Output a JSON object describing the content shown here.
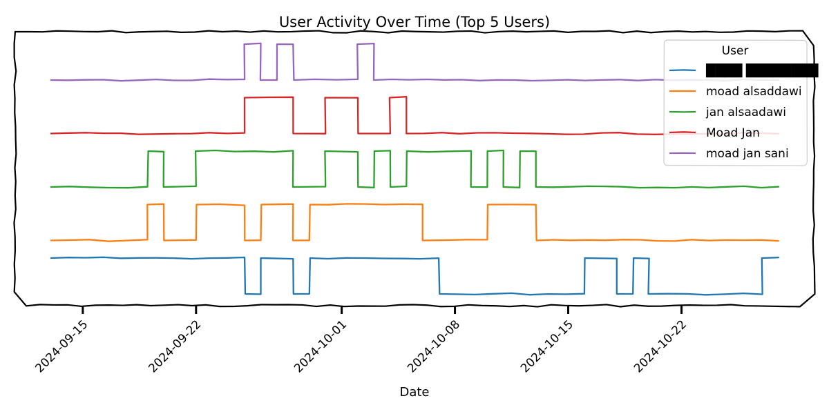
{
  "chart_data": {
    "type": "line",
    "style": "step",
    "title": "User Activity Over Time (Top 5 Users)",
    "xlabel": "Date",
    "ylabel": "",
    "x_tick_labels": [
      "2024-09-15",
      "2024-09-22",
      "2024-10-01",
      "2024-10-08",
      "2024-10-15",
      "2024-10-22"
    ],
    "x_tick_dates": [
      "2024-09-15",
      "2024-09-22",
      "2024-10-01",
      "2024-10-08",
      "2024-10-15",
      "2024-10-22"
    ],
    "xlim": [
      "2024-09-13",
      "2024-10-28"
    ],
    "y_ticks_shown": false,
    "grid": false,
    "legend": {
      "title": "User",
      "position": "top-right"
    },
    "series": [
      {
        "name": "████ ████████",
        "color": "#1f77b4",
        "baseline": 0,
        "active": 1,
        "note_segments": [
          [
            "2024-09-13",
            1
          ],
          [
            "2024-09-25",
            0
          ],
          [
            "2024-09-26",
            1
          ],
          [
            "2024-09-28",
            0
          ],
          [
            "2024-09-29",
            1
          ],
          [
            "2024-10-07",
            0
          ],
          [
            "2024-10-16",
            1
          ],
          [
            "2024-10-18",
            0
          ],
          [
            "2024-10-19",
            1
          ],
          [
            "2024-10-20",
            0
          ],
          [
            "2024-10-27",
            1
          ],
          [
            "2024-10-28",
            1
          ]
        ]
      },
      {
        "name": "moad alsaddawi",
        "color": "#ff7f0e",
        "baseline": 1,
        "active": 1,
        "note_segments": [
          [
            "2024-09-13",
            0
          ],
          [
            "2024-09-19",
            1
          ],
          [
            "2024-09-20",
            0
          ],
          [
            "2024-09-22",
            1
          ],
          [
            "2024-09-25",
            0
          ],
          [
            "2024-09-26",
            1
          ],
          [
            "2024-09-28",
            0
          ],
          [
            "2024-09-29",
            1
          ],
          [
            "2024-10-06",
            0
          ],
          [
            "2024-10-10",
            1
          ],
          [
            "2024-10-13",
            0
          ],
          [
            "2024-10-28",
            0
          ]
        ]
      },
      {
        "name": "jan alsaadawi",
        "color": "#2ca02c",
        "baseline": 2,
        "active": 1,
        "note_segments": [
          [
            "2024-09-13",
            0
          ],
          [
            "2024-09-19",
            1
          ],
          [
            "2024-09-20",
            0
          ],
          [
            "2024-09-22",
            1
          ],
          [
            "2024-09-28",
            0
          ],
          [
            "2024-09-30",
            1
          ],
          [
            "2024-10-02",
            0
          ],
          [
            "2024-10-03",
            1
          ],
          [
            "2024-10-04",
            0
          ],
          [
            "2024-10-05",
            1
          ],
          [
            "2024-10-09",
            0
          ],
          [
            "2024-10-10",
            1
          ],
          [
            "2024-10-11",
            0
          ],
          [
            "2024-10-12",
            1
          ],
          [
            "2024-10-13",
            0
          ],
          [
            "2024-10-28",
            0
          ]
        ]
      },
      {
        "name": "Moad Jan",
        "color": "#d62728",
        "baseline": 3,
        "active": 1,
        "note_segments": [
          [
            "2024-09-13",
            0
          ],
          [
            "2024-09-25",
            1
          ],
          [
            "2024-09-28",
            0
          ],
          [
            "2024-09-30",
            1
          ],
          [
            "2024-10-02",
            0
          ],
          [
            "2024-10-04",
            1
          ],
          [
            "2024-10-05",
            0
          ],
          [
            "2024-10-28",
            0
          ]
        ]
      },
      {
        "name": "moad jan sani",
        "color": "#9467bd",
        "baseline": 4,
        "active": 1,
        "note_segments": [
          [
            "2024-09-13",
            0
          ],
          [
            "2024-09-25",
            1
          ],
          [
            "2024-09-26",
            0
          ],
          [
            "2024-09-27",
            1
          ],
          [
            "2024-09-28",
            0
          ],
          [
            "2024-10-02",
            1
          ],
          [
            "2024-10-03",
            0
          ],
          [
            "2024-10-28",
            0
          ]
        ]
      }
    ]
  }
}
